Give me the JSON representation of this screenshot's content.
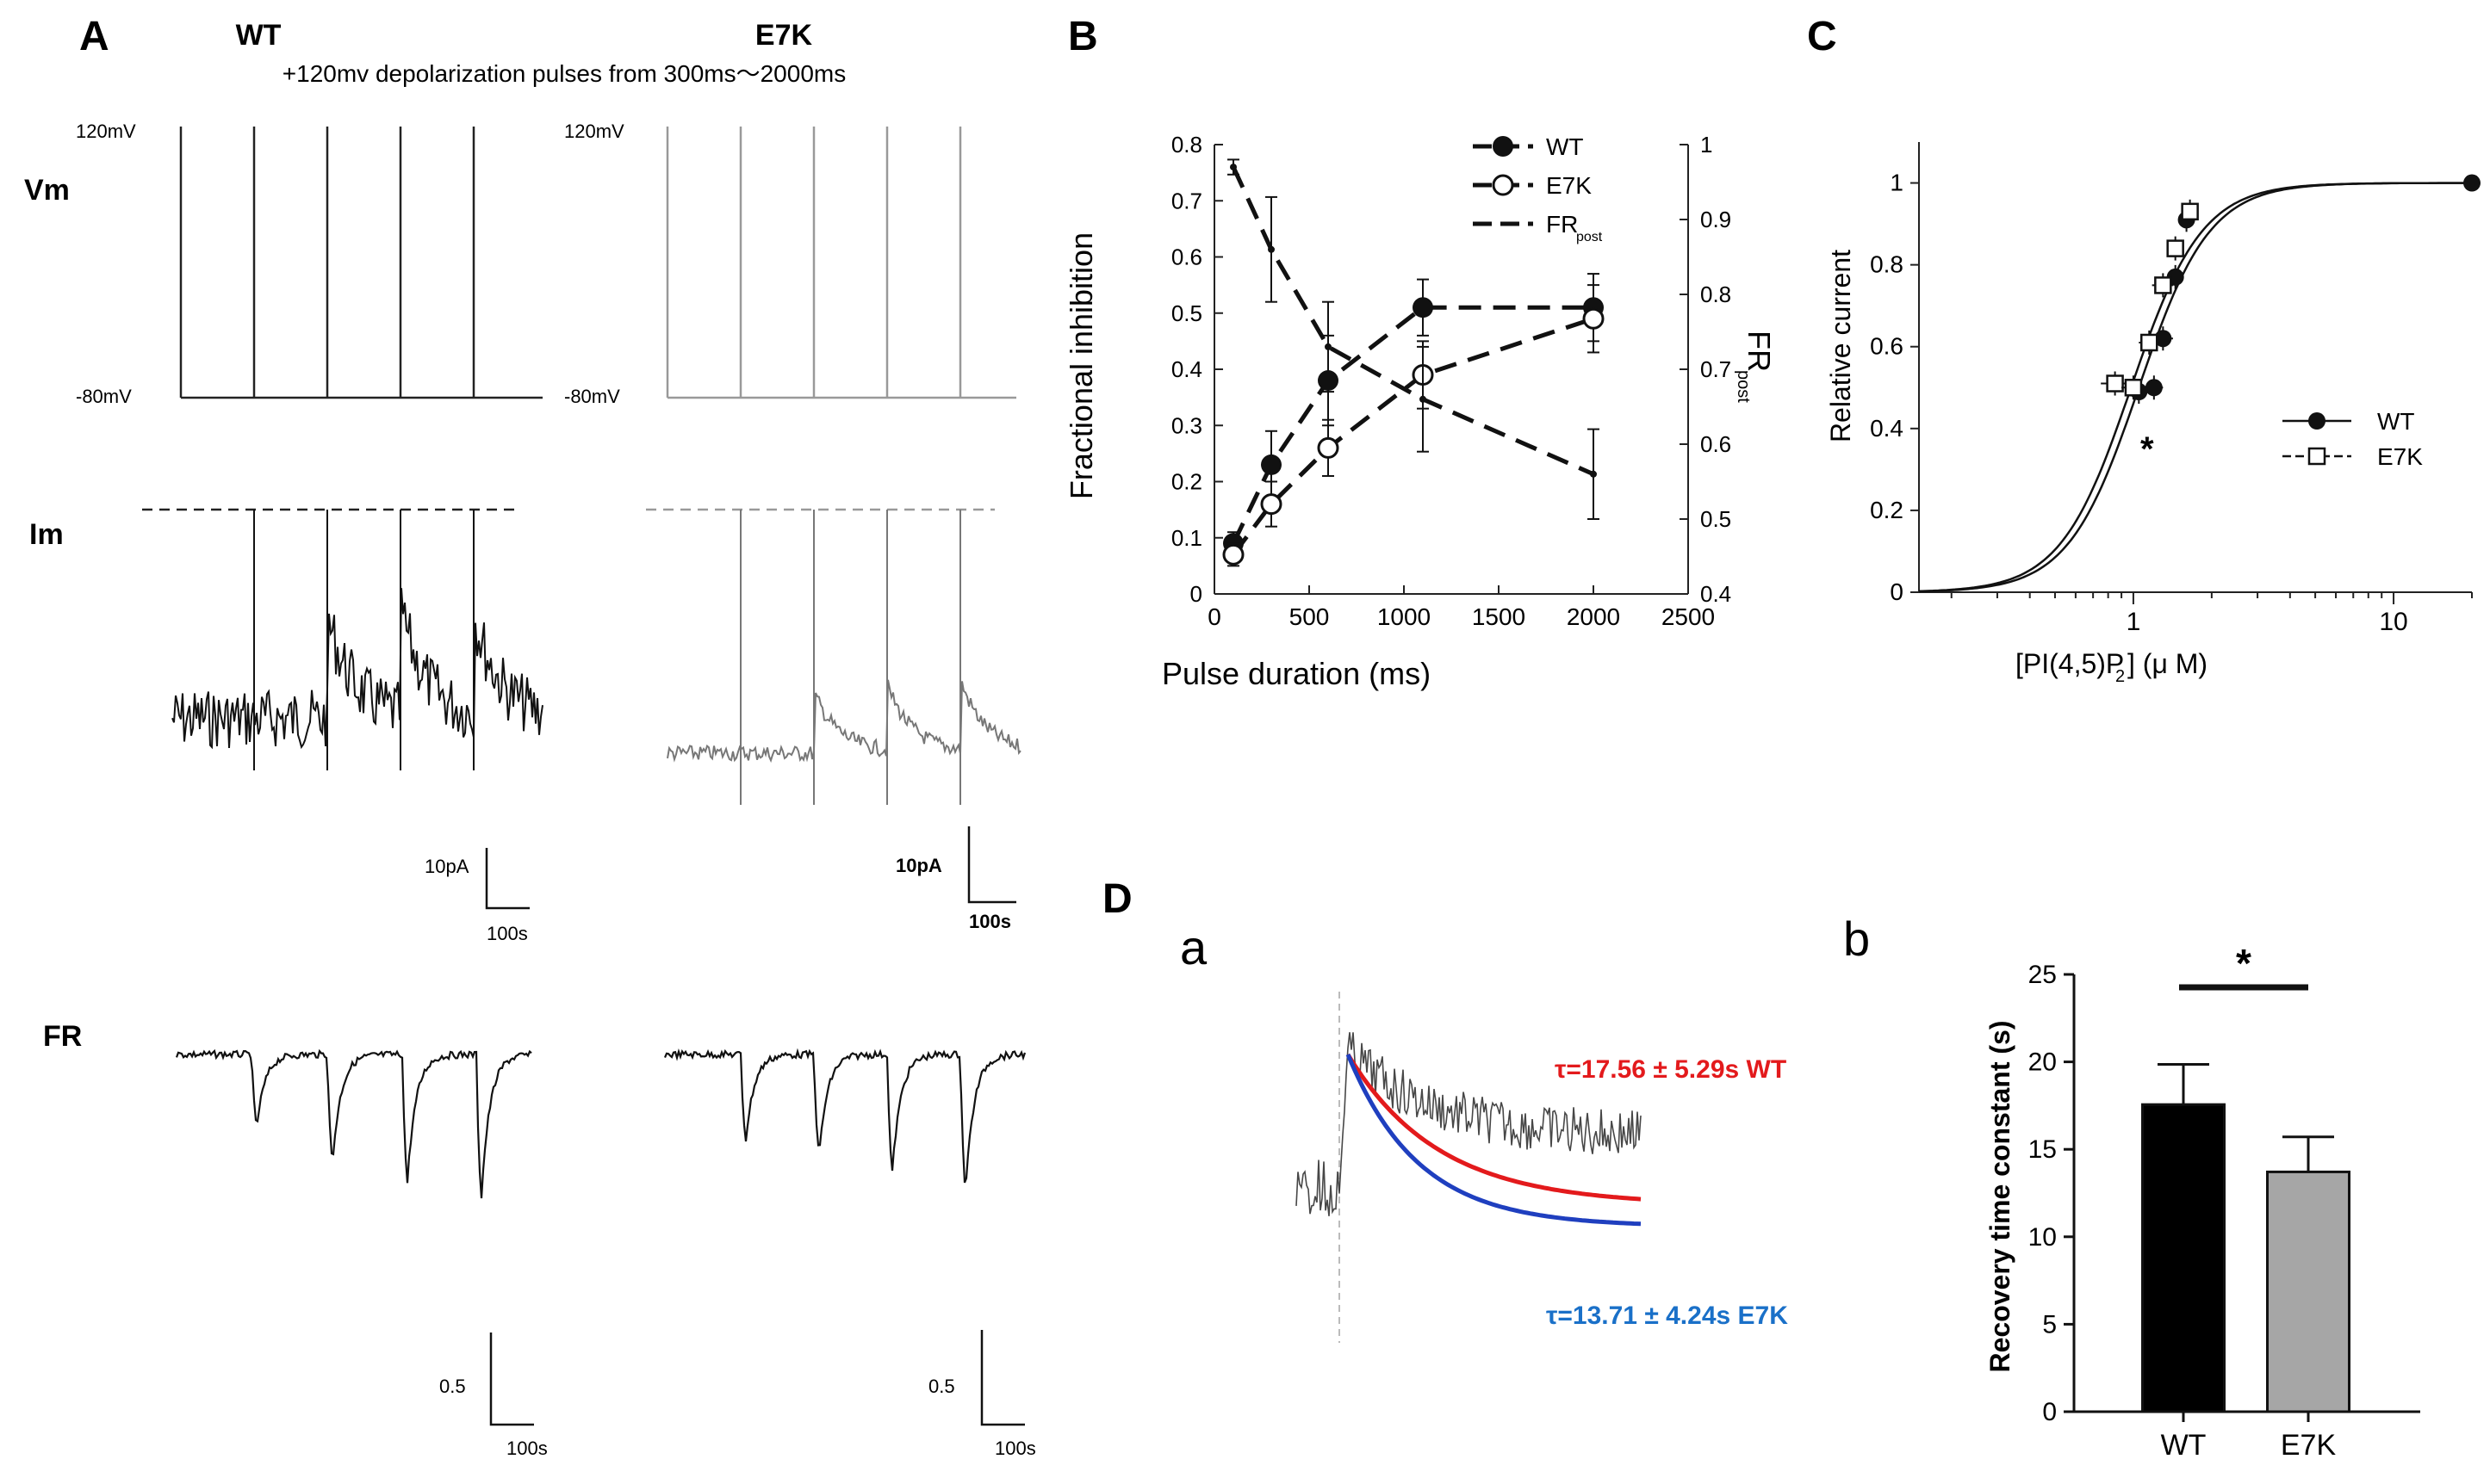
{
  "panels": {
    "A": "A",
    "B": "B",
    "C": "C",
    "D": "D",
    "Da": "a",
    "Db": "b"
  },
  "panelA": {
    "title_wt": "WT",
    "title_e7k": "E7K",
    "subtitle": "+120mv depolarization pulses from 300ms～2000ms",
    "row_vm": "Vm",
    "row_im": "Im",
    "row_fr": "FR",
    "v_high": "120mV",
    "v_low": "-80mV",
    "scale_wt_current": "10pA",
    "scale_wt_time": "100s",
    "scale_e7k_current": "10pA",
    "scale_e7k_time": "100s",
    "scale_fr_wt": "0.5",
    "scale_fr_wt_time": "100s",
    "scale_fr_e7k": "0.5",
    "scale_fr_e7k_time": "100s",
    "colors": {
      "wt": "#111111",
      "e7k": "#888888"
    }
  },
  "chart_data": [
    {
      "id": "B",
      "type": "line",
      "xlabel": "Pulse duration (ms)",
      "ylabel": "Fractional inhibition",
      "y2label": "FR",
      "y2label_sub": "post",
      "xlim": [
        0,
        2500
      ],
      "ylim": [
        0,
        0.8
      ],
      "y2lim": [
        0.4,
        1.0
      ],
      "xticks": [
        0,
        500,
        1000,
        1500,
        2000,
        2500
      ],
      "yticks": [
        0,
        0.1,
        0.2,
        0.3,
        0.4,
        0.5,
        0.6,
        0.7,
        0.8
      ],
      "y2ticks": [
        0.4,
        0.5,
        0.6,
        0.7,
        0.8,
        0.9,
        1
      ],
      "legend": {
        "wt": "WT",
        "e7k": "E7K",
        "fr": "FR",
        "fr_sub": "post"
      },
      "series": [
        {
          "name": "WT",
          "marker": "filled",
          "axis": "left",
          "x": [
            100,
            300,
            600,
            1100,
            2000
          ],
          "y": [
            0.09,
            0.23,
            0.38,
            0.51,
            0.51
          ],
          "err": [
            0.02,
            0.06,
            0.08,
            0.05,
            0.06
          ]
        },
        {
          "name": "E7K",
          "marker": "open",
          "axis": "left",
          "x": [
            100,
            300,
            600,
            1100,
            2000
          ],
          "y": [
            0.07,
            0.16,
            0.26,
            0.39,
            0.49
          ],
          "err": [
            0.02,
            0.04,
            0.05,
            0.06,
            0.06
          ]
        },
        {
          "name": "FRpost",
          "marker": "small",
          "axis": "right",
          "x": [
            100,
            300,
            600,
            1100,
            2000
          ],
          "y": [
            0.97,
            0.86,
            0.73,
            0.66,
            0.56
          ],
          "err": [
            0.01,
            0.07,
            0.06,
            0.07,
            0.06
          ]
        }
      ]
    },
    {
      "id": "C",
      "type": "scatter",
      "xscale": "log",
      "xlabel": "[PI(4,5)P",
      "xlabel_sub": "2",
      "xlabel_end": "] (μ M)",
      "ylabel": "Relative current",
      "xlim": [
        0.15,
        20
      ],
      "ylim": [
        0,
        1.1
      ],
      "xticks": [
        1,
        10
      ],
      "yticks": [
        0,
        0.2,
        0.4,
        0.6,
        0.8,
        1
      ],
      "annotation": "*",
      "legend": {
        "wt": "WT",
        "e7k": "E7K"
      },
      "series": [
        {
          "name": "WT",
          "marker": "filled",
          "x": [
            1.05,
            1.2,
            1.3,
            1.45,
            1.6,
            20
          ],
          "y": [
            0.49,
            0.5,
            0.62,
            0.77,
            0.91,
            1.0
          ],
          "xerr": [
            0.12,
            0.1,
            0.12,
            0.1,
            0.1,
            0
          ]
        },
        {
          "name": "E7K",
          "marker": "open",
          "x": [
            0.85,
            1.0,
            1.15,
            1.3,
            1.45,
            1.65
          ],
          "y": [
            0.51,
            0.5,
            0.61,
            0.75,
            0.84,
            0.93
          ],
          "xerr": [
            0.1,
            0.1,
            0.1,
            0.12,
            0.1,
            0.05
          ]
        }
      ],
      "fits": [
        {
          "name": "WT",
          "ec50": 1.05,
          "n": 3.2
        },
        {
          "name": "E7K",
          "ec50": 0.98,
          "n": 3.2
        }
      ]
    },
    {
      "id": "Db",
      "type": "bar",
      "ylabel": "Recovery time constant (s)",
      "categories": [
        "WT",
        "E7K"
      ],
      "values": [
        17.56,
        13.71
      ],
      "err": [
        2.3,
        2.0
      ],
      "colors": [
        "#000000",
        "#a6a6a6"
      ],
      "ylim": [
        0,
        25
      ],
      "yticks": [
        0,
        5,
        10,
        15,
        20,
        25
      ],
      "annotation": "*"
    }
  ],
  "panelDa": {
    "wt_label": "τ=17.56 ± 5.29s WT",
    "e7k_label": "τ=13.71 ± 4.24s E7K",
    "wt_color": "#e31a1c",
    "e7k_color": "#1f4fbf"
  }
}
